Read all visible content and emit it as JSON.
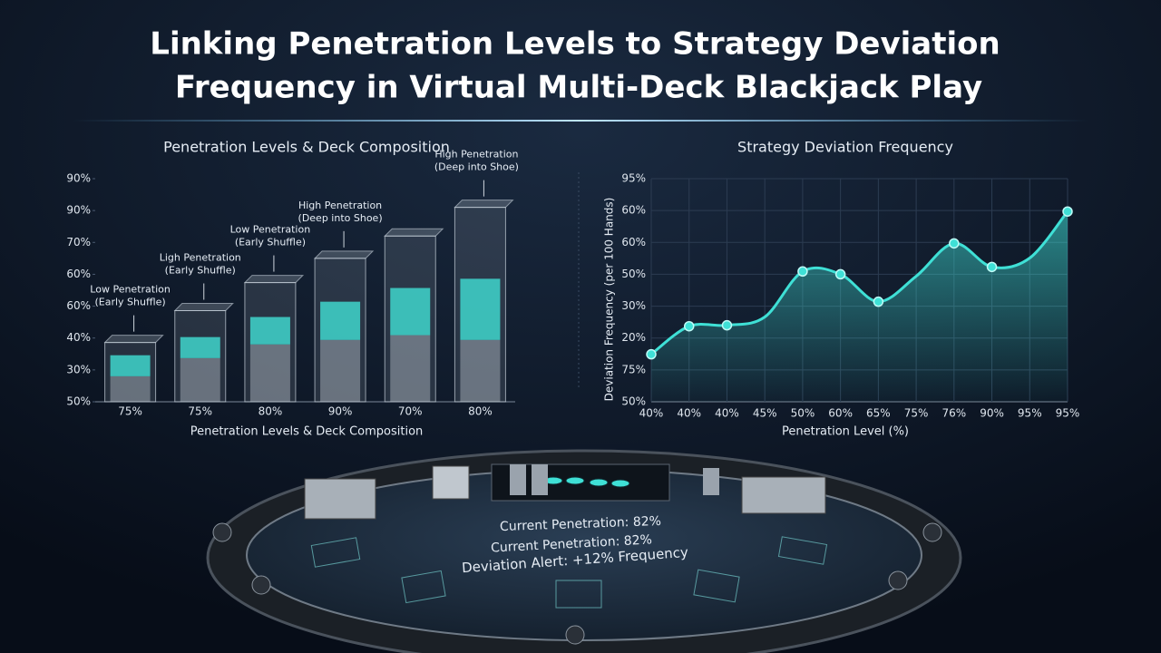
{
  "title_lines": [
    "Linking Penetration Levels to Strategy Deviation",
    "Frequency in Virtual Multi-Deck Blackjack Play"
  ],
  "chart_data": [
    {
      "type": "bar",
      "title": "Penetration Levels & Deck Composition",
      "x_label": "Penetration Levels & Deck Composition",
      "categories": [
        "75%",
        "75%",
        "80%",
        "90%",
        "70%",
        "80%"
      ],
      "values": [
        1.86,
        2.86,
        3.74,
        4.5,
        5.2,
        6.1
      ],
      "color": "#9aa6b4",
      "series": [
        {
          "color": "#b8c0c9",
          "values": [
            0.8,
            1.37,
            1.8,
            1.94,
            2.09,
            1.94
          ]
        },
        {
          "color": "#3fd6cc",
          "values": [
            0.66,
            0.66,
            0.86,
            1.2,
            1.48,
            1.92
          ]
        }
      ],
      "ylim": [
        0,
        7
      ],
      "yticks": [
        {
          "value": 0,
          "label": "50%"
        },
        {
          "value": 1,
          "label": "30%"
        },
        {
          "value": 2,
          "label": "40%"
        },
        {
          "value": 3,
          "label": "60%"
        },
        {
          "value": 4,
          "label": "60%"
        },
        {
          "value": 5,
          "label": "70%"
        },
        {
          "value": 6,
          "label": "90%"
        },
        {
          "value": 7,
          "label": "90%"
        }
      ],
      "grid": false,
      "annotations": [
        [
          "Low Penetration",
          "(Early Shuffle)"
        ],
        [
          "Ligh Penetration",
          "(Early Shuffle)"
        ],
        [
          "Low Penetration",
          "(Early Shuffle)"
        ],
        [
          "High Penetration",
          "(Deep into Shoe)"
        ],
        [
          "High Penetration",
          "(Deep into Shoe)"
        ]
      ]
    },
    {
      "type": "line",
      "title": "Strategy Deviation Frequency",
      "x_label": "Penetration Level (%)",
      "y_label": "Deviation Frequency (per 100 Hands)",
      "categories": [
        "40%",
        "40%",
        "40%",
        "45%",
        "50%",
        "60%",
        "65%",
        "75%",
        "76%",
        "90%",
        "95%",
        "95%"
      ],
      "values": [
        1.49,
        2.37,
        2.4,
        2.66,
        4.09,
        4.0,
        3.14,
        3.94,
        4.97,
        4.23,
        4.51,
        5.97
      ],
      "markers": [
        true,
        true,
        true,
        false,
        true,
        true,
        true,
        false,
        true,
        true,
        false,
        true
      ],
      "color": "#3fe0d6",
      "ylim": [
        0,
        7
      ],
      "yticks": [
        {
          "value": 0,
          "label": "50%"
        },
        {
          "value": 1,
          "label": "75%"
        },
        {
          "value": 2,
          "label": "20%"
        },
        {
          "value": 3,
          "label": "30%"
        },
        {
          "value": 4,
          "label": "50%"
        },
        {
          "value": 5,
          "label": "60%"
        },
        {
          "value": 6,
          "label": "60%"
        },
        {
          "value": 7,
          "label": "95%"
        }
      ],
      "grid": true
    }
  ],
  "table": {
    "line1": "Current Penetration: 82%",
    "line2": "Current Penetration: 82%",
    "alert": "Deviation Alert: +12% Frequency"
  }
}
